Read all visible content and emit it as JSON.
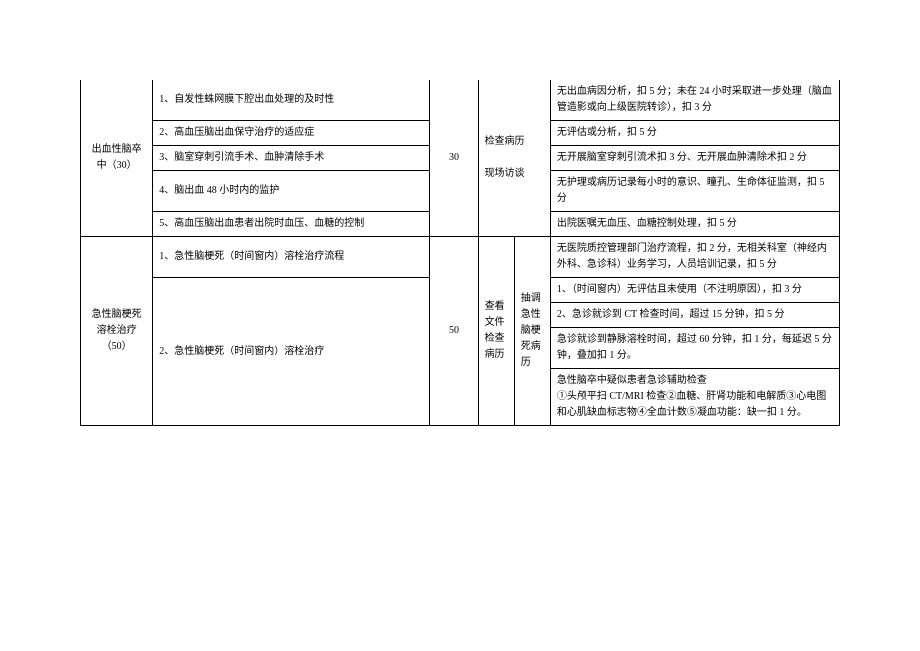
{
  "table": {
    "section1": {
      "category": "出血性脑卒中（30）",
      "score": "30",
      "method": "检查病历\n\n现场访谈",
      "rows": [
        {
          "item": "1、自发性蛛网膜下腔出血处理的及时性",
          "criteria": "无出血病因分析，扣 5 分；未在 24 小时采取进一步处理（脑血管造影或向上级医院转诊），扣 3 分"
        },
        {
          "item": "2、高血压脑出血保守治疗的适应症",
          "criteria": "无评估或分析，扣 5 分"
        },
        {
          "item": "3、脑室穿刺引流手术、血肿清除手术",
          "criteria": "无开展脑室穿刺引流术扣 3 分、无开展血肿清除术扣 2 分"
        },
        {
          "item": "4、脑出血 48 小时内的监护",
          "criteria": "无护理或病历记录每小时的意识、瞳孔、生命体征监测，扣 5 分"
        },
        {
          "item": "5、高血压脑出血患者出院时血压、血糖的控制",
          "criteria": "出院医嘱无血压、血糖控制处理，扣 5 分"
        }
      ]
    },
    "section2": {
      "category": "急性脑梗死溶栓治疗（50）",
      "score": "50",
      "method": "查看文件检查病历",
      "sub_method": "抽调急性脑梗死病历",
      "rows": [
        {
          "item": "1、急性脑梗死（时间窗内）溶栓治疗流程",
          "criteria": "无医院质控管理部门治疗流程，扣 2 分，无相关科室（神经内外科、急诊科）业务学习，人员培训记录，扣 5 分"
        },
        {
          "item": "2、急性脑梗死（时间窗内）溶栓治疗",
          "criteria1": "1、（时间窗内）无评估且未使用（不注明原因），扣 3 分",
          "criteria2": "2、急诊就诊到 CT 检查时间，超过 15 分钟，扣 5 分",
          "criteria3": "急诊就诊到静脉溶栓时间，超过 60 分钟，扣 1 分，每延迟 5 分钟，叠加扣 1 分。",
          "criteria4": "急性脑卒中疑似患者急诊辅助检查\n①头颅平扫 CT/MRI 检查②血糖、肝肾功能和电解质③心电图和心肌缺血标志物④全血计数⑤凝血功能：缺一扣 1 分。"
        }
      ]
    }
  }
}
